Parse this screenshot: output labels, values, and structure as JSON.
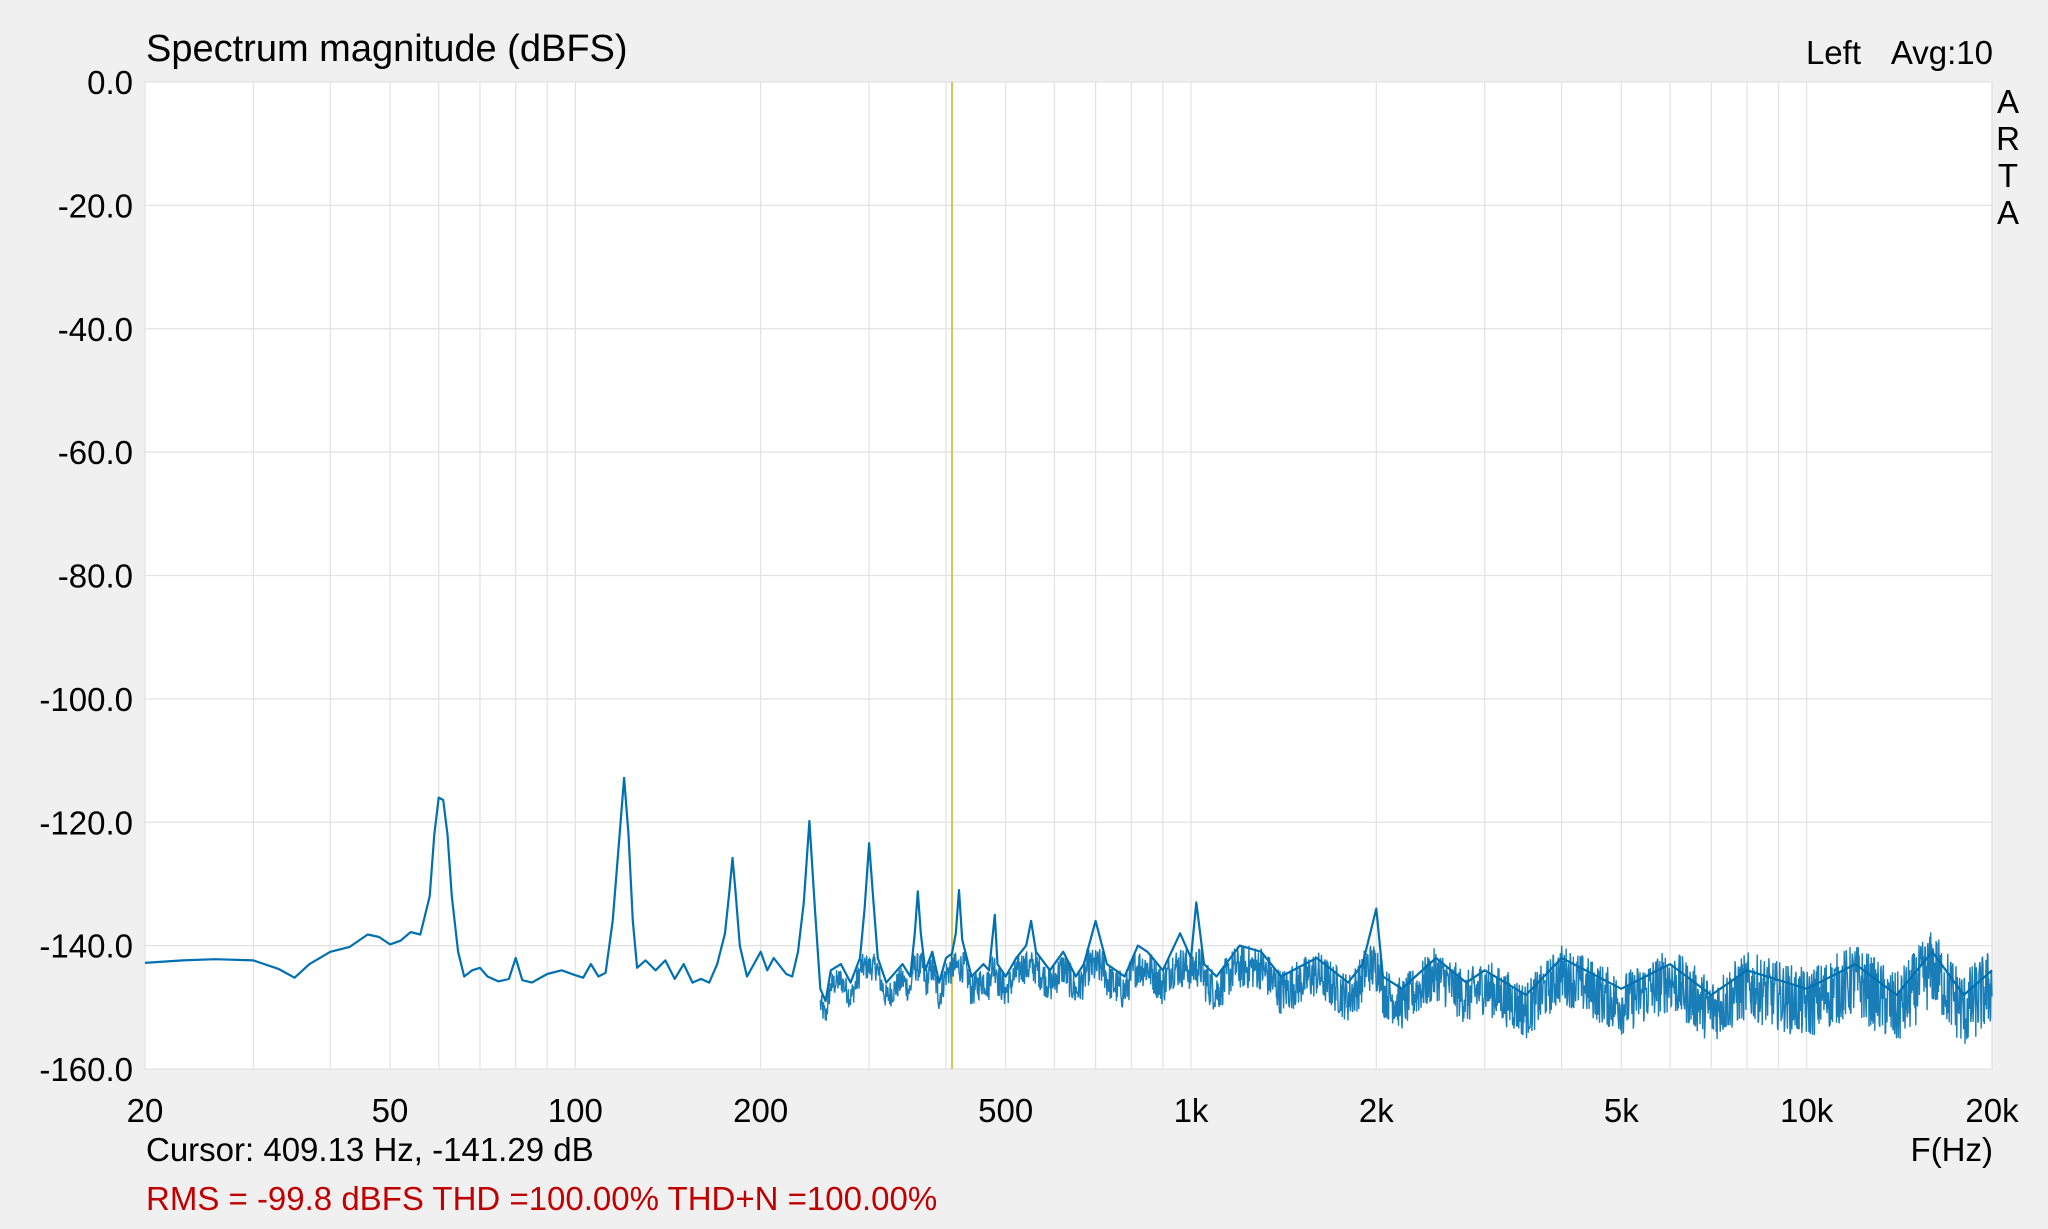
{
  "chart_data": {
    "type": "line",
    "title": "Spectrum magnitude (dBFS)",
    "channel_label": "Left",
    "avg_label": "Avg:10",
    "brand_letters": [
      "A",
      "R",
      "T",
      "A"
    ],
    "xlabel": "F(Hz)",
    "ylabel": "",
    "x_scale": "log",
    "xlim": [
      20,
      20000
    ],
    "ylim": [
      -160,
      0
    ],
    "grid": true,
    "x_ticks": [
      {
        "value": 20,
        "label": "20"
      },
      {
        "value": 50,
        "label": "50"
      },
      {
        "value": 100,
        "label": "100"
      },
      {
        "value": 200,
        "label": "200"
      },
      {
        "value": 500,
        "label": "500"
      },
      {
        "value": 1000,
        "label": "1k"
      },
      {
        "value": 2000,
        "label": "2k"
      },
      {
        "value": 5000,
        "label": "5k"
      },
      {
        "value": 10000,
        "label": "10k"
      },
      {
        "value": 20000,
        "label": "20k"
      }
    ],
    "y_ticks": [
      {
        "value": 0,
        "label": "0.0"
      },
      {
        "value": -20,
        "label": "-20.0"
      },
      {
        "value": -40,
        "label": "-40.0"
      },
      {
        "value": -60,
        "label": "-60.0"
      },
      {
        "value": -80,
        "label": "-80.0"
      },
      {
        "value": -100,
        "label": "-100.0"
      },
      {
        "value": -120,
        "label": "-120.0"
      },
      {
        "value": -140,
        "label": "-140.0"
      },
      {
        "value": -160,
        "label": "-160.0"
      }
    ],
    "cursor": {
      "x": 409.13,
      "y": -141.29,
      "text": "Cursor: 409.13 Hz, -141.29 dB"
    },
    "stats_text": "RMS =  -99.8 dBFS THD =100.00% THD+N =100.00%",
    "series": [
      {
        "color": "#0070b0",
        "points": [
          [
            20,
            -142.8
          ],
          [
            23,
            -142.4
          ],
          [
            26,
            -142.2
          ],
          [
            30,
            -142.4
          ],
          [
            33,
            -143.8
          ],
          [
            35,
            -145.2
          ],
          [
            37,
            -143.0
          ],
          [
            40,
            -141.0
          ],
          [
            43,
            -140.2
          ],
          [
            46,
            -138.2
          ],
          [
            48,
            -138.6
          ],
          [
            50,
            -139.8
          ],
          [
            52,
            -139.2
          ],
          [
            54,
            -137.8
          ],
          [
            56,
            -138.2
          ],
          [
            58,
            -132.0
          ],
          [
            59,
            -122.0
          ],
          [
            60,
            -116.0
          ],
          [
            61,
            -116.4
          ],
          [
            62,
            -122.0
          ],
          [
            63,
            -132.0
          ],
          [
            64.5,
            -141.0
          ],
          [
            66,
            -145.0
          ],
          [
            68,
            -144.0
          ],
          [
            70,
            -143.6
          ],
          [
            72,
            -145.0
          ],
          [
            75,
            -145.8
          ],
          [
            78,
            -145.4
          ],
          [
            80,
            -142.0
          ],
          [
            82,
            -145.6
          ],
          [
            85,
            -146.0
          ],
          [
            90,
            -144.6
          ],
          [
            95,
            -144.0
          ],
          [
            100,
            -144.8
          ],
          [
            103,
            -145.2
          ],
          [
            106,
            -143.0
          ],
          [
            109,
            -145.0
          ],
          [
            112,
            -144.4
          ],
          [
            115,
            -136.0
          ],
          [
            118,
            -122.0
          ],
          [
            120,
            -112.8
          ],
          [
            122,
            -122.0
          ],
          [
            124,
            -136.0
          ],
          [
            126,
            -143.6
          ],
          [
            130,
            -142.4
          ],
          [
            135,
            -144.0
          ],
          [
            140,
            -142.4
          ],
          [
            145,
            -145.4
          ],
          [
            150,
            -143.0
          ],
          [
            155,
            -146.0
          ],
          [
            160,
            -145.4
          ],
          [
            165,
            -146.0
          ],
          [
            170,
            -143.0
          ],
          [
            175,
            -138.0
          ],
          [
            178,
            -131.0
          ],
          [
            180,
            -125.8
          ],
          [
            182,
            -131.0
          ],
          [
            185,
            -140.0
          ],
          [
            190,
            -145.0
          ],
          [
            195,
            -143.0
          ],
          [
            200,
            -141.0
          ],
          [
            205,
            -144.0
          ],
          [
            210,
            -142.0
          ],
          [
            220,
            -144.6
          ],
          [
            225,
            -145.0
          ],
          [
            230,
            -141.0
          ],
          [
            235,
            -133.0
          ],
          [
            240,
            -119.8
          ],
          [
            245,
            -134.0
          ],
          [
            250,
            -147.0
          ],
          [
            255,
            -149.0
          ],
          [
            260,
            -144.0
          ],
          [
            270,
            -143.0
          ],
          [
            280,
            -146.0
          ],
          [
            290,
            -142.0
          ],
          [
            295,
            -134.0
          ],
          [
            300,
            -123.4
          ],
          [
            305,
            -133.0
          ],
          [
            310,
            -142.0
          ],
          [
            320,
            -146.0
          ],
          [
            340,
            -143.0
          ],
          [
            350,
            -145.0
          ],
          [
            356,
            -138.0
          ],
          [
            360,
            -131.2
          ],
          [
            364,
            -138.0
          ],
          [
            370,
            -144.0
          ],
          [
            380,
            -141.0
          ],
          [
            390,
            -146.0
          ],
          [
            400,
            -142.0
          ],
          [
            409.13,
            -141.29
          ],
          [
            415,
            -138.0
          ],
          [
            420,
            -131.0
          ],
          [
            425,
            -139.0
          ],
          [
            440,
            -145.0
          ],
          [
            460,
            -143.0
          ],
          [
            470,
            -144.0
          ],
          [
            480,
            -135.0
          ],
          [
            485,
            -143.0
          ],
          [
            500,
            -145.0
          ],
          [
            520,
            -142.0
          ],
          [
            540,
            -140.0
          ],
          [
            550,
            -136.0
          ],
          [
            560,
            -141.0
          ],
          [
            590,
            -144.0
          ],
          [
            620,
            -141.0
          ],
          [
            650,
            -145.0
          ],
          [
            670,
            -143.0
          ],
          [
            700,
            -136.0
          ],
          [
            730,
            -143.0
          ],
          [
            780,
            -145.0
          ],
          [
            820,
            -140.0
          ],
          [
            850,
            -141.0
          ],
          [
            900,
            -144.0
          ],
          [
            960,
            -138.0
          ],
          [
            1000,
            -142.0
          ],
          [
            1020,
            -133.0
          ],
          [
            1050,
            -143.0
          ],
          [
            1100,
            -145.0
          ],
          [
            1200,
            -140.0
          ],
          [
            1300,
            -141.0
          ],
          [
            1400,
            -145.0
          ],
          [
            1600,
            -142.0
          ],
          [
            1800,
            -146.0
          ],
          [
            1900,
            -143.0
          ],
          [
            2000,
            -134.0
          ],
          [
            2050,
            -145.0
          ],
          [
            2200,
            -147.0
          ],
          [
            2500,
            -142.0
          ],
          [
            2800,
            -146.0
          ],
          [
            3000,
            -144.0
          ],
          [
            3500,
            -148.0
          ],
          [
            4000,
            -142.0
          ],
          [
            5000,
            -147.0
          ],
          [
            6000,
            -143.0
          ],
          [
            7000,
            -148.0
          ],
          [
            8000,
            -144.0
          ],
          [
            10000,
            -147.0
          ],
          [
            12000,
            -143.0
          ],
          [
            14000,
            -148.0
          ],
          [
            16000,
            -141.0
          ],
          [
            18000,
            -148.0
          ],
          [
            20000,
            -144.0
          ]
        ]
      }
    ]
  }
}
